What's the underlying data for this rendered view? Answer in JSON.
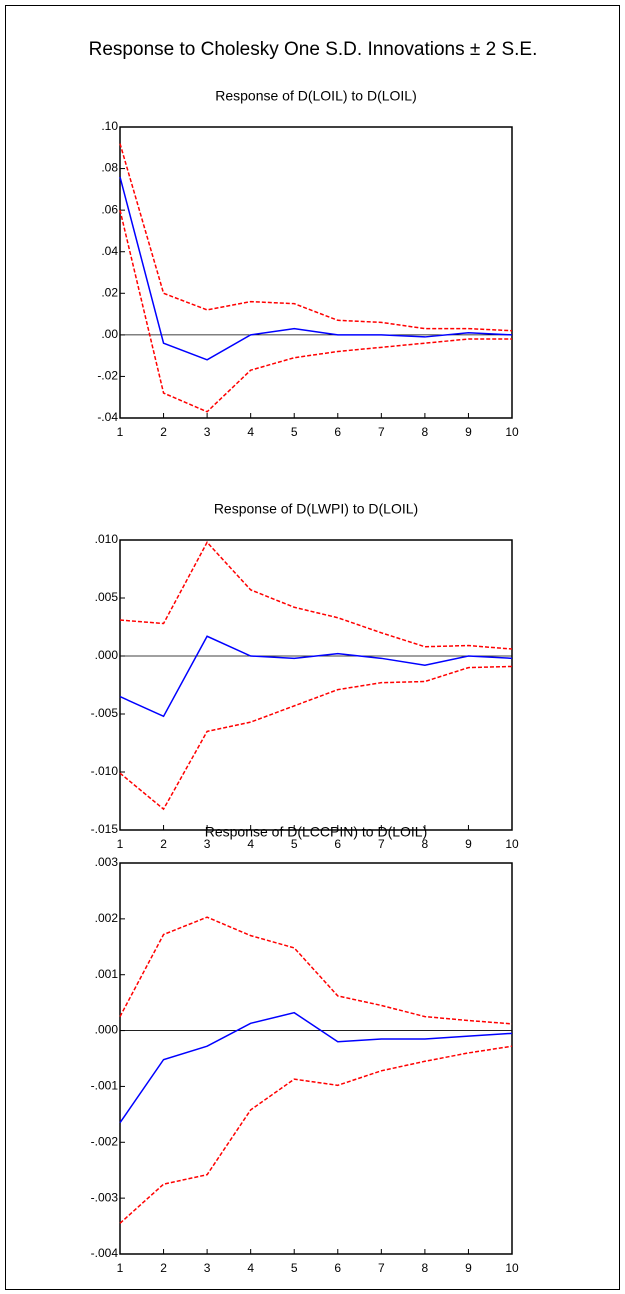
{
  "title": "Response to Cholesky One S.D. Innovations ± 2 S.E.",
  "chart_data": [
    {
      "type": "line",
      "title": "Response of D(LOIL) to D(LOIL)",
      "x": [
        1,
        2,
        3,
        4,
        5,
        6,
        7,
        8,
        9,
        10
      ],
      "series": [
        {
          "color": "#ff0000",
          "dashed": true,
          "values": [
            0.092,
            0.02,
            0.012,
            0.016,
            0.015,
            0.007,
            0.006,
            0.003,
            0.003,
            0.002
          ]
        },
        {
          "color": "#0000ff",
          "dashed": false,
          "values": [
            0.076,
            -0.004,
            -0.012,
            0.0,
            0.003,
            0.0,
            0.0,
            -0.001,
            0.001,
            0.0
          ]
        },
        {
          "color": "#ff0000",
          "dashed": true,
          "values": [
            0.06,
            -0.028,
            -0.037,
            -0.017,
            -0.011,
            -0.008,
            -0.006,
            -0.004,
            -0.002,
            -0.002
          ]
        }
      ],
      "xlim": [
        1,
        10
      ],
      "xticks": [
        1,
        2,
        3,
        4,
        5,
        6,
        7,
        8,
        9,
        10
      ],
      "ylim": [
        -0.04,
        0.1
      ],
      "yticks": [
        {
          "value": -0.04,
          "label": "-.04"
        },
        {
          "value": -0.02,
          "label": "-.02"
        },
        {
          "value": 0,
          "label": ".00"
        },
        {
          "value": 0.02,
          "label": ".02"
        },
        {
          "value": 0.04,
          "label": ".04"
        },
        {
          "value": 0.06,
          "label": ".06"
        },
        {
          "value": 0.08,
          "label": ".08"
        },
        {
          "value": 0.1,
          "label": ".10"
        }
      ],
      "hline": 0
    },
    {
      "type": "line",
      "title": "Response of D(LWPI) to D(LOIL)",
      "x": [
        1,
        2,
        3,
        4,
        5,
        6,
        7,
        8,
        9,
        10
      ],
      "series": [
        {
          "color": "#ff0000",
          "dashed": true,
          "values": [
            0.0031,
            0.0028,
            0.0098,
            0.0057,
            0.0042,
            0.0033,
            0.002,
            0.0008,
            0.0009,
            0.0006
          ]
        },
        {
          "color": "#0000ff",
          "dashed": false,
          "values": [
            -0.0035,
            -0.0052,
            0.0017,
            0.0,
            -0.0002,
            0.0002,
            -0.0002,
            -0.0008,
            0.0,
            -0.0002
          ]
        },
        {
          "color": "#ff0000",
          "dashed": true,
          "values": [
            -0.0101,
            -0.0132,
            -0.0065,
            -0.0057,
            -0.0043,
            -0.0029,
            -0.0023,
            -0.0022,
            -0.001,
            -0.0009
          ]
        }
      ],
      "xlim": [
        1,
        10
      ],
      "xticks": [
        1,
        2,
        3,
        4,
        5,
        6,
        7,
        8,
        9,
        10
      ],
      "ylim": [
        -0.015,
        0.01
      ],
      "yticks": [
        {
          "value": -0.015,
          "label": "-.015"
        },
        {
          "value": -0.01,
          "label": "-.010"
        },
        {
          "value": -0.005,
          "label": "-.005"
        },
        {
          "value": 0,
          "label": ".000"
        },
        {
          "value": 0.005,
          "label": ".005"
        },
        {
          "value": 0.01,
          "label": ".010"
        }
      ],
      "hline": 0
    },
    {
      "type": "line",
      "title": "Response of D(LCCPIN) to D(LOIL)",
      "x": [
        1,
        2,
        3,
        4,
        5,
        6,
        7,
        8,
        9,
        10
      ],
      "series": [
        {
          "color": "#ff0000",
          "dashed": true,
          "values": [
            0.00025,
            0.00172,
            0.00203,
            0.0017,
            0.00148,
            0.00062,
            0.00045,
            0.00025,
            0.00018,
            0.00012
          ]
        },
        {
          "color": "#0000ff",
          "dashed": false,
          "values": [
            -0.00165,
            -0.00052,
            -0.00028,
            0.00013,
            0.00032,
            -0.0002,
            -0.00015,
            -0.00015,
            -0.0001,
            -5e-05
          ]
        },
        {
          "color": "#ff0000",
          "dashed": true,
          "values": [
            -0.00345,
            -0.00275,
            -0.00258,
            -0.00142,
            -0.00087,
            -0.00098,
            -0.00072,
            -0.00055,
            -0.0004,
            -0.00028
          ]
        }
      ],
      "xlim": [
        1,
        10
      ],
      "xticks": [
        1,
        2,
        3,
        4,
        5,
        6,
        7,
        8,
        9,
        10
      ],
      "ylim": [
        -0.004,
        0.003
      ],
      "yticks": [
        {
          "value": -0.004,
          "label": "-.004"
        },
        {
          "value": -0.003,
          "label": "-.003"
        },
        {
          "value": -0.002,
          "label": "-.002"
        },
        {
          "value": -0.001,
          "label": "-.001"
        },
        {
          "value": 0,
          "label": ".000"
        },
        {
          "value": 0.001,
          "label": ".001"
        },
        {
          "value": 0.002,
          "label": ".002"
        },
        {
          "value": 0.003,
          "label": ".003"
        }
      ],
      "hline": 0
    }
  ]
}
